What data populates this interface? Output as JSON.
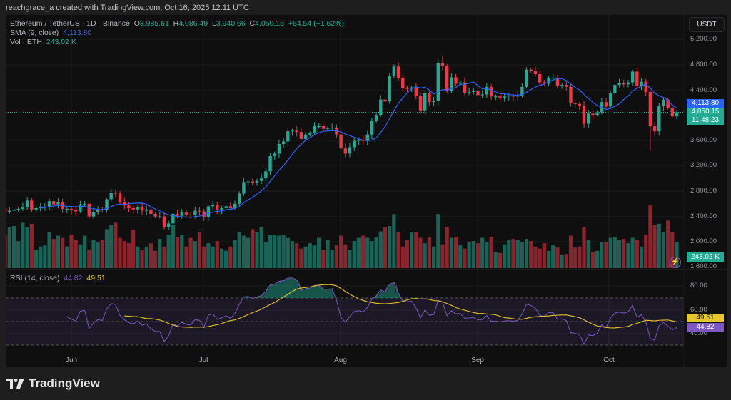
{
  "credit": "reachgrace_a created with TradingView.com, Oct 16, 2025 12:11 UTC",
  "legend": {
    "symbol": "Ethereum / TetherUS · 1D · Binance",
    "o_label": "O",
    "o": "3,985.61",
    "h_label": "H",
    "h": "4,086.49",
    "l_label": "L",
    "l": "3,940.66",
    "c_label": "C",
    "c": "4,050.15",
    "change": "+64.54 (+1.62%)",
    "sma_label": "SMA (9, close)",
    "sma_value": "4,113.80",
    "vol_label": "Vol · ETH",
    "vol_value": "243.02 K",
    "rsi_label": "RSI (14, close)",
    "rsi_value": "44.82",
    "rsi_ma_value": "49.51"
  },
  "currency_button": "USDT",
  "markers": {
    "sma": "4,113.80",
    "close": "4,050.15",
    "countdown": "11:48:23",
    "volume": "243.02 K",
    "rsi_ma": "49.51",
    "rsi": "44.82"
  },
  "price_axis": [
    "5,200.00",
    "4,800.00",
    "4,400.00",
    "3,600.00",
    "3,200.00",
    "2,800.00",
    "2,400.00",
    "2,000.00",
    "1,600.00"
  ],
  "rsi_axis": [
    "80.00",
    "60.00",
    "40.00"
  ],
  "time_axis": [
    "Jun",
    "Jul",
    "Aug",
    "Sep",
    "Oct"
  ],
  "brand": "TradingView",
  "colors": {
    "up": "#22ab94",
    "down": "#f23645",
    "sma": "#2962ff",
    "rsi": "#7e57c2",
    "rsi_ma": "#e5c62b"
  },
  "chart_data": {
    "type": "candlestick",
    "start_date": "2025-05-17",
    "end_date": "2025-10-16",
    "first_open": 2530,
    "close": [
      2480,
      2500,
      2520,
      2530,
      2550,
      2660,
      2520,
      2540,
      2550,
      2560,
      2650,
      2600,
      2630,
      2530,
      2530,
      2510,
      2490,
      2600,
      2610,
      2410,
      2480,
      2520,
      2510,
      2680,
      2780,
      2770,
      2640,
      2580,
      2540,
      2520,
      2560,
      2500,
      2520,
      2450,
      2410,
      2410,
      2240,
      2300,
      2450,
      2420,
      2470,
      2440,
      2430,
      2500,
      2490,
      2400,
      2570,
      2590,
      2520,
      2540,
      2570,
      2540,
      2610,
      2770,
      2950,
      2960,
      2940,
      2970,
      3010,
      3120,
      3360,
      3400,
      3550,
      3590,
      3750,
      3760,
      3740,
      3630,
      3700,
      3720,
      3830,
      3830,
      3790,
      3800,
      3810,
      3700,
      3480,
      3400,
      3500,
      3600,
      3620,
      3600,
      3700,
      3910,
      4010,
      4250,
      4220,
      4620,
      4770,
      4590,
      4430,
      4420,
      4440,
      4310,
      4080,
      4350,
      4210,
      4230,
      4830,
      4780,
      4380,
      4600,
      4500,
      4520,
      4360,
      4370,
      4390,
      4320,
      4330,
      4450,
      4300,
      4300,
      4280,
      4300,
      4310,
      4300,
      4310,
      4450,
      4720,
      4700,
      4650,
      4520,
      4500,
      4590,
      4590,
      4470,
      4480,
      4450,
      4200,
      4180,
      4150,
      3870,
      4030,
      4010,
      4050,
      4210,
      4140,
      4350,
      4480,
      4510,
      4490,
      4520,
      4690,
      4460,
      4530,
      4370,
      3830,
      3750,
      4150,
      4250,
      4120,
      3985.61,
      4050.15
    ],
    "notable_wicks": [
      {
        "date": "2025-08-24",
        "high": 4950
      },
      {
        "date": "2025-10-10",
        "low": 3440
      },
      {
        "date": "2025-10-16",
        "high": 4086.49,
        "low": 3940.66
      }
    ],
    "volume_k": [
      300,
      380,
      390,
      250,
      420,
      380,
      410,
      170,
      200,
      210,
      330,
      270,
      300,
      280,
      200,
      310,
      260,
      220,
      300,
      170,
      260,
      240,
      260,
      360,
      400,
      420,
      280,
      250,
      230,
      350,
      200,
      170,
      200,
      230,
      160,
      270,
      200,
      310,
      400,
      290,
      310,
      200,
      280,
      250,
      330,
      200,
      230,
      200,
      250,
      180,
      160,
      200,
      260,
      330,
      300,
      280,
      360,
      330,
      380,
      240,
      310,
      310,
      300,
      310,
      280,
      250,
      230,
      180,
      200,
      230,
      210,
      280,
      170,
      260,
      170,
      210,
      300,
      220,
      170,
      250,
      280,
      300,
      280,
      250,
      290,
      340,
      380,
      390,
      500,
      330,
      200,
      260,
      330,
      330,
      280,
      230,
      290,
      200,
      500,
      220,
      380,
      280,
      290,
      210,
      180,
      240,
      250,
      230,
      280,
      240,
      290,
      150,
      140,
      220,
      260,
      270,
      260,
      240,
      270,
      250,
      200,
      180,
      230,
      160,
      210,
      190,
      120,
      130,
      300,
      190,
      200,
      380,
      260,
      150,
      160,
      240,
      240,
      280,
      290,
      260,
      270,
      230,
      280,
      260,
      200,
      310,
      580,
      400,
      410,
      330,
      440,
      330,
      243.02
    ],
    "price_range": [
      1600,
      5200
    ],
    "rsi_range": [
      20,
      90
    ],
    "rsi_bands": [
      30,
      50,
      70
    ],
    "indicators": [
      "SMA 9",
      "Volume",
      "RSI 14",
      "RSI MA 14"
    ]
  }
}
